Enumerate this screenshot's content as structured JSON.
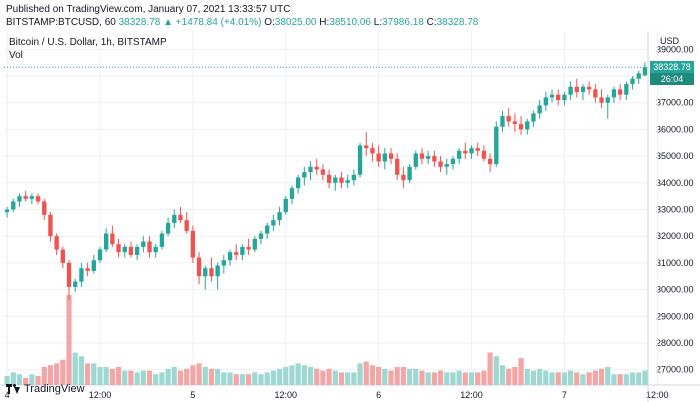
{
  "header": {
    "published": "Published on TradingView.com, January 07, 2021 13:33:57 UTC",
    "symbol": "BITSTAMP:BTCUSD, 60",
    "open": "38328.78",
    "change": "▲ +1478.84 (+4.01%)",
    "o_label": "O:",
    "o": "38025.00",
    "h_label": "H:",
    "h": "38510.06",
    "l_label": "L:",
    "l": "37986.18",
    "c_label": "C:",
    "c": "38328.78"
  },
  "legend": {
    "title": "Bitcoin / U.S. Dollar, 1h, BITSTAMP",
    "volume": "Vol"
  },
  "price_axis": {
    "currency": "USD",
    "last_price": "38328.78",
    "countdown": "26:04"
  },
  "footer": {
    "brand": "TradingView"
  },
  "colors": {
    "up": "#26a69a",
    "down": "#ef5350",
    "vol_up": "#9fd8d2",
    "vol_down": "#f2a6a5",
    "grid": "#eef0f4"
  },
  "chart_data": {
    "type": "candlestick",
    "title": "Bitcoin / U.S. Dollar, 1h, BITSTAMP",
    "ylim": [
      26500,
      39500
    ],
    "y_ticks": [
      39000,
      38000,
      37000,
      36000,
      35000,
      34000,
      33000,
      32000,
      31000,
      30000,
      29000,
      28000,
      27000
    ],
    "x_ticks": [
      "4",
      "12:00",
      "5",
      "12:00",
      "6",
      "12:00",
      "7",
      "12:00"
    ],
    "x_tick_index": [
      0,
      15,
      30,
      45,
      60,
      75,
      90,
      105
    ],
    "last_price": 38328.78,
    "candles": [
      [
        32900,
        33100,
        32700,
        33000,
        0.25
      ],
      [
        33000,
        33400,
        32900,
        33300,
        0.35
      ],
      [
        33300,
        33600,
        33100,
        33500,
        0.3
      ],
      [
        33500,
        33700,
        33300,
        33400,
        0.2
      ],
      [
        33400,
        33600,
        33200,
        33500,
        0.3
      ],
      [
        33500,
        33600,
        33200,
        33300,
        0.25
      ],
      [
        33300,
        33400,
        32600,
        32800,
        0.5
      ],
      [
        32800,
        32900,
        31800,
        32000,
        0.55
      ],
      [
        32000,
        32100,
        31300,
        31500,
        0.6
      ],
      [
        31500,
        31600,
        30800,
        31000,
        0.7
      ],
      [
        31000,
        31100,
        29600,
        30100,
        2.5
      ],
      [
        30100,
        30400,
        29900,
        30300,
        0.9
      ],
      [
        30300,
        31000,
        30100,
        30800,
        0.8
      ],
      [
        30800,
        31000,
        30500,
        30700,
        0.6
      ],
      [
        30700,
        31300,
        30600,
        31100,
        0.6
      ],
      [
        31100,
        31600,
        31000,
        31500,
        0.5
      ],
      [
        31500,
        32300,
        31400,
        32100,
        0.5
      ],
      [
        32100,
        32400,
        31600,
        31700,
        0.45
      ],
      [
        31700,
        31900,
        31200,
        31400,
        0.5
      ],
      [
        31400,
        31700,
        31200,
        31600,
        0.4
      ],
      [
        31600,
        31800,
        31200,
        31300,
        0.4
      ],
      [
        31300,
        31700,
        31100,
        31600,
        0.35
      ],
      [
        31600,
        32000,
        31400,
        31800,
        0.4
      ],
      [
        31800,
        32000,
        31200,
        31400,
        0.4
      ],
      [
        31400,
        31700,
        31200,
        31600,
        0.3
      ],
      [
        31600,
        32200,
        31500,
        32100,
        0.35
      ],
      [
        32100,
        32700,
        32000,
        32500,
        0.45
      ],
      [
        32500,
        33000,
        32300,
        32800,
        0.5
      ],
      [
        32800,
        33100,
        32500,
        32600,
        0.4
      ],
      [
        32600,
        32900,
        32100,
        32200,
        0.45
      ],
      [
        32200,
        32400,
        31000,
        31200,
        0.55
      ],
      [
        31200,
        31400,
        30200,
        30500,
        0.6
      ],
      [
        30500,
        30900,
        30000,
        30800,
        0.5
      ],
      [
        30800,
        31200,
        30300,
        30500,
        0.45
      ],
      [
        30500,
        31000,
        30000,
        30900,
        0.45
      ],
      [
        30900,
        31300,
        30600,
        31100,
        0.35
      ],
      [
        31100,
        31500,
        30900,
        31400,
        0.35
      ],
      [
        31400,
        31700,
        31100,
        31300,
        0.3
      ],
      [
        31300,
        31700,
        31100,
        31600,
        0.3
      ],
      [
        31600,
        31900,
        31300,
        31500,
        0.3
      ],
      [
        31500,
        32000,
        31400,
        31900,
        0.35
      ],
      [
        31900,
        32200,
        31700,
        32100,
        0.3
      ],
      [
        32100,
        32500,
        31900,
        32400,
        0.35
      ],
      [
        32400,
        32800,
        32200,
        32600,
        0.4
      ],
      [
        32600,
        33100,
        32400,
        32900,
        0.45
      ],
      [
        32900,
        33500,
        32800,
        33400,
        0.5
      ],
      [
        33400,
        33900,
        33200,
        33800,
        0.55
      ],
      [
        33800,
        34300,
        33600,
        34200,
        0.6
      ],
      [
        34200,
        34600,
        33900,
        34400,
        0.55
      ],
      [
        34400,
        34800,
        34100,
        34600,
        0.5
      ],
      [
        34600,
        34900,
        34300,
        34500,
        0.45
      ],
      [
        34500,
        34700,
        34100,
        34300,
        0.4
      ],
      [
        34300,
        34500,
        33800,
        34000,
        0.45
      ],
      [
        34000,
        34300,
        33700,
        34200,
        0.4
      ],
      [
        34200,
        34400,
        33800,
        34000,
        0.35
      ],
      [
        34000,
        34300,
        33800,
        34100,
        0.35
      ],
      [
        34100,
        34500,
        33900,
        34300,
        0.35
      ],
      [
        34300,
        35500,
        34200,
        35400,
        0.6
      ],
      [
        35400,
        35900,
        35000,
        35300,
        0.65
      ],
      [
        35300,
        35500,
        34800,
        35100,
        0.55
      ],
      [
        35100,
        35400,
        34600,
        34800,
        0.5
      ],
      [
        34800,
        35300,
        34500,
        35100,
        0.45
      ],
      [
        35100,
        35300,
        34700,
        34900,
        0.4
      ],
      [
        34900,
        35100,
        34100,
        34300,
        0.5
      ],
      [
        34300,
        34600,
        33800,
        34100,
        0.5
      ],
      [
        34100,
        34700,
        34000,
        34600,
        0.45
      ],
      [
        34600,
        35200,
        34500,
        35100,
        0.45
      ],
      [
        35100,
        35300,
        34700,
        34900,
        0.4
      ],
      [
        34900,
        35200,
        34700,
        35000,
        0.35
      ],
      [
        35000,
        35200,
        34600,
        34800,
        0.35
      ],
      [
        34800,
        35000,
        34400,
        34600,
        0.4
      ],
      [
        34600,
        34900,
        34300,
        34700,
        0.35
      ],
      [
        34700,
        35000,
        34500,
        34900,
        0.35
      ],
      [
        34900,
        35300,
        34700,
        35200,
        0.4
      ],
      [
        35200,
        35500,
        34900,
        35100,
        0.35
      ],
      [
        35100,
        35400,
        34900,
        35300,
        0.35
      ],
      [
        35300,
        35500,
        35000,
        35200,
        0.35
      ],
      [
        35200,
        35400,
        34800,
        34900,
        0.4
      ],
      [
        34900,
        35100,
        34400,
        34700,
        0.9
      ],
      [
        34700,
        36300,
        34600,
        36100,
        0.8
      ],
      [
        36100,
        36700,
        35900,
        36500,
        0.55
      ],
      [
        36500,
        36800,
        36100,
        36300,
        0.45
      ],
      [
        36300,
        36600,
        35900,
        36200,
        0.5
      ],
      [
        36200,
        36500,
        35800,
        36000,
        0.75
      ],
      [
        36000,
        36400,
        35800,
        36300,
        0.45
      ],
      [
        36300,
        36700,
        36100,
        36600,
        0.4
      ],
      [
        36600,
        37100,
        36400,
        36900,
        0.45
      ],
      [
        36900,
        37400,
        36700,
        37200,
        0.4
      ],
      [
        37200,
        37500,
        37000,
        37300,
        0.35
      ],
      [
        37300,
        37500,
        36900,
        37100,
        0.35
      ],
      [
        37100,
        37400,
        36900,
        37300,
        0.35
      ],
      [
        37300,
        37800,
        37100,
        37600,
        0.4
      ],
      [
        37600,
        37900,
        37200,
        37400,
        0.35
      ],
      [
        37400,
        37700,
        37100,
        37600,
        0.3
      ],
      [
        37600,
        37800,
        37300,
        37500,
        0.35
      ],
      [
        37500,
        37700,
        37000,
        37200,
        0.4
      ],
      [
        37200,
        37500,
        36800,
        37000,
        0.45
      ],
      [
        37000,
        37300,
        36400,
        37200,
        0.5
      ],
      [
        37200,
        37600,
        37000,
        37500,
        0.3
      ],
      [
        37500,
        37700,
        37100,
        37300,
        0.3
      ],
      [
        37300,
        37800,
        37100,
        37700,
        0.3
      ],
      [
        37700,
        38000,
        37500,
        37900,
        0.35
      ],
      [
        37900,
        38200,
        37700,
        38100,
        0.35
      ],
      [
        38025,
        38510,
        37986,
        38329,
        0.4
      ]
    ]
  }
}
